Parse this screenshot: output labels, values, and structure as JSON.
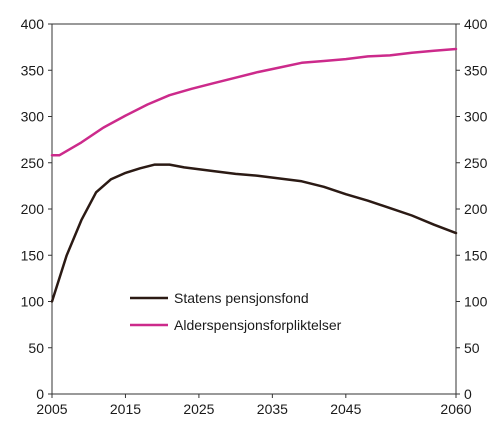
{
  "chart_data": {
    "type": "line",
    "title": "",
    "xlabel": "",
    "ylabel": "",
    "xlim": [
      2005,
      2060
    ],
    "ylim": [
      0,
      400
    ],
    "x_ticks": [
      "2005",
      "2015",
      "2025",
      "2035",
      "2045",
      "2060"
    ],
    "y_ticks": [
      "0",
      "50",
      "100",
      "150",
      "200",
      "250",
      "300",
      "350",
      "400"
    ],
    "y_ticks_right": [
      "0",
      "50",
      "100",
      "150",
      "200",
      "250",
      "300",
      "350",
      "400"
    ],
    "grid": false,
    "legend_position": "center-left",
    "series": [
      {
        "name": "Statens pensjonsfond",
        "color": "#2b1a14",
        "x": [
          2005,
          2007,
          2009,
          2011,
          2013,
          2015,
          2017,
          2019,
          2021,
          2023,
          2025,
          2027,
          2030,
          2033,
          2036,
          2039,
          2042,
          2045,
          2048,
          2051,
          2054,
          2057,
          2060
        ],
        "y": [
          100,
          150,
          188,
          218,
          232,
          239,
          244,
          248,
          248,
          245,
          243,
          241,
          238,
          236,
          233,
          230,
          224,
          216,
          209,
          201,
          193,
          183,
          174
        ]
      },
      {
        "name": "Alderspensjonsforpliktelser",
        "color": "#cc2a8b",
        "x": [
          2005,
          2006,
          2009,
          2012,
          2015,
          2018,
          2021,
          2024,
          2027,
          2030,
          2033,
          2036,
          2039,
          2042,
          2045,
          2048,
          2051,
          2054,
          2057,
          2060
        ],
        "y": [
          258,
          258,
          272,
          288,
          301,
          313,
          323,
          330,
          336,
          342,
          348,
          353,
          358,
          360,
          362,
          365,
          366,
          369,
          371,
          373
        ]
      }
    ]
  }
}
